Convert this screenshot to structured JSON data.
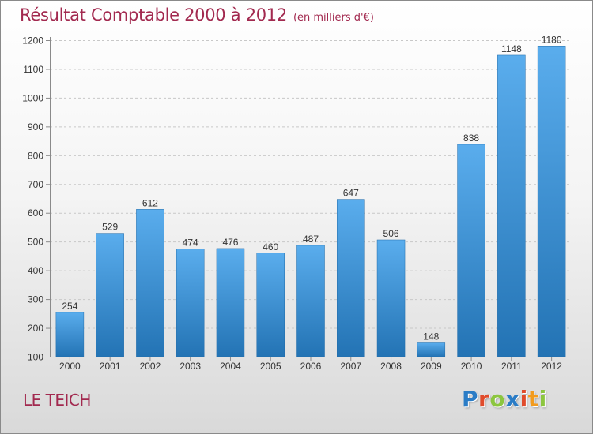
{
  "header": {
    "title": "Résultat Comptable 2000 à 2012",
    "subtitle": "(en milliers d'€)"
  },
  "footer": {
    "town": "LE TEICH",
    "brand_letters": [
      "P",
      "r",
      "o",
      "x",
      "i",
      "t",
      "i"
    ],
    "brand_colors": [
      "#2a7cc6",
      "#e04b2b",
      "#8cc63f",
      "#2a7cc6",
      "#e04b2b",
      "#f29b1d",
      "#8cc63f"
    ]
  },
  "colors": {
    "bar_top": "#5aaded",
    "bar_bottom": "#2373b4",
    "title": "#a2294f",
    "grid": "#c8c8c8"
  },
  "chart_data": {
    "type": "bar",
    "title": "Résultat Comptable 2000 à 2012",
    "subtitle": "(en milliers d'€)",
    "categories": [
      "2000",
      "2001",
      "2002",
      "2003",
      "2004",
      "2005",
      "2006",
      "2007",
      "2008",
      "2009",
      "2010",
      "2011",
      "2012"
    ],
    "values": [
      254,
      529,
      612,
      474,
      476,
      460,
      487,
      647,
      506,
      148,
      838,
      1148,
      1180
    ],
    "ylim": [
      100,
      1200
    ],
    "yticks": [
      100,
      200,
      300,
      400,
      500,
      600,
      700,
      800,
      900,
      1000,
      1100,
      1200
    ],
    "grid": true,
    "xlabel": "",
    "ylabel": ""
  }
}
